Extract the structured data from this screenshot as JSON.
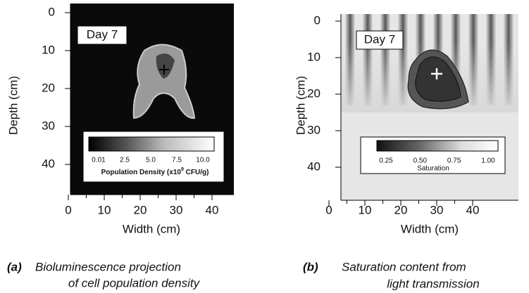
{
  "panels": [
    {
      "tag": "Day 7",
      "y_label": "Depth (cm)",
      "x_label": "Width (cm)",
      "yticks": [
        0,
        10,
        20,
        30,
        40
      ],
      "xticks": [
        0,
        10,
        20,
        30,
        40
      ],
      "colorbar": {
        "ticks": [
          "0.01",
          "2.5",
          "5.0",
          "7.5",
          "10.0"
        ],
        "title": "Population Density (x10",
        "title_sup": "9",
        "title_end": " CFU/g)"
      },
      "caption_tag": "(a)",
      "caption": [
        "Bioluminescence projection",
        "of cell population density"
      ]
    },
    {
      "tag": "Day 7",
      "y_label": "Depth (cm)",
      "x_label": "Width (cm)",
      "yticks": [
        0,
        10,
        20,
        30,
        40
      ],
      "xticks": [
        0,
        10,
        20,
        30,
        40
      ],
      "colorbar": {
        "ticks": [
          "0.25",
          "0.50",
          "0.75",
          "1.00"
        ],
        "title": "Saturation"
      },
      "caption_tag": "(b)",
      "caption": [
        "Saturation content from",
        "light transmission"
      ]
    }
  ]
}
